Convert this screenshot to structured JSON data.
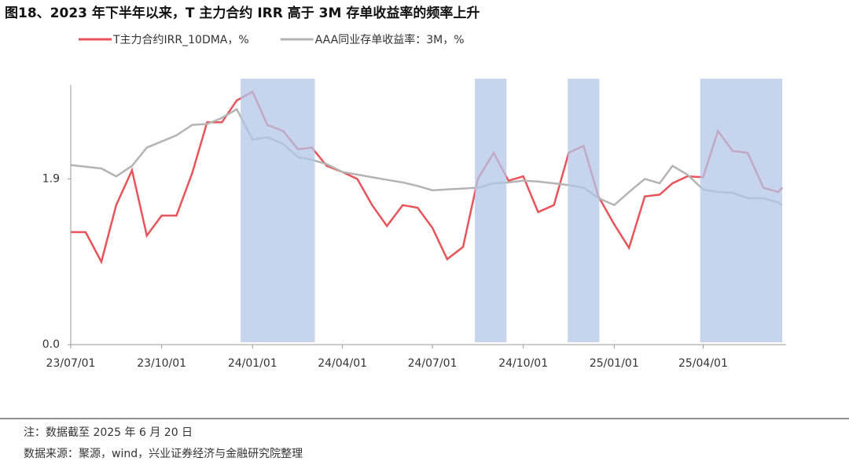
{
  "chart_data": {
    "type": "line",
    "title": "图18、2023 年下半年以来，T 主力合约 IRR 高于 3M 存单收益率的频率上升",
    "x": [
      "2023-07-01",
      "2023-07-16",
      "2023-08-01",
      "2023-08-16",
      "2023-09-01",
      "2023-09-16",
      "2023-10-01",
      "2023-10-16",
      "2023-11-01",
      "2023-11-16",
      "2023-12-01",
      "2023-12-16",
      "2024-01-01",
      "2024-01-16",
      "2024-02-01",
      "2024-02-16",
      "2024-03-01",
      "2024-03-16",
      "2024-04-01",
      "2024-04-16",
      "2024-05-01",
      "2024-05-16",
      "2024-06-01",
      "2024-06-16",
      "2024-07-01",
      "2024-07-16",
      "2024-08-01",
      "2024-08-16",
      "2024-09-01",
      "2024-09-16",
      "2024-10-01",
      "2024-10-16",
      "2024-11-01",
      "2024-11-16",
      "2024-12-01",
      "2024-12-16",
      "2025-01-01",
      "2025-01-16",
      "2025-02-01",
      "2025-02-16",
      "2025-03-01",
      "2025-03-16",
      "2025-04-01",
      "2025-04-16",
      "2025-05-01",
      "2025-05-16",
      "2025-06-01",
      "2025-06-16",
      "2025-06-20"
    ],
    "series": [
      {
        "name": "T主力合约IRR_10DMA，%",
        "color": "#e8545a",
        "values": [
          1.29,
          1.29,
          0.95,
          1.6,
          2.0,
          1.25,
          1.48,
          1.48,
          1.97,
          2.55,
          2.55,
          2.8,
          2.9,
          2.52,
          2.45,
          2.24,
          2.26,
          2.05,
          1.98,
          1.9,
          1.6,
          1.36,
          1.6,
          1.57,
          1.34,
          0.98,
          1.12,
          1.9,
          2.2,
          1.88,
          1.93,
          1.52,
          1.6,
          2.2,
          2.28,
          1.7,
          1.38,
          1.11,
          1.7,
          1.72,
          1.85,
          1.93,
          1.92,
          2.45,
          2.22,
          2.2,
          1.8,
          1.75,
          1.8
        ]
      },
      {
        "name": "AAA同业存单收益率：3M，%",
        "color": "#b4b4b4",
        "values": [
          2.06,
          2.04,
          2.02,
          1.93,
          2.05,
          2.26,
          2.33,
          2.4,
          2.52,
          2.53,
          2.6,
          2.7,
          2.35,
          2.38,
          2.3,
          2.15,
          2.12,
          2.07,
          1.98,
          1.95,
          1.92,
          1.89,
          1.86,
          1.82,
          1.77,
          1.78,
          1.79,
          1.8,
          1.85,
          1.86,
          1.88,
          1.87,
          1.85,
          1.83,
          1.8,
          1.68,
          1.6,
          1.75,
          1.9,
          1.85,
          2.05,
          1.95,
          1.78,
          1.75,
          1.74,
          1.68,
          1.68,
          1.63,
          1.6
        ]
      }
    ],
    "shaded_periods": [
      [
        "2023-12-20",
        "2024-03-04"
      ],
      [
        "2024-08-13",
        "2024-09-14"
      ],
      [
        "2024-11-15",
        "2024-12-17"
      ],
      [
        "2025-03-29",
        "2025-06-20"
      ]
    ],
    "shade_color": "#b4c6e7",
    "xlim": [
      "2023-07-01",
      "2025-06-20"
    ],
    "xticks": [
      {
        "value": "2023-07-01",
        "label": "23/07/01"
      },
      {
        "value": "2023-10-01",
        "label": "23/10/01"
      },
      {
        "value": "2024-01-01",
        "label": "24/01/01"
      },
      {
        "value": "2024-04-01",
        "label": "24/04/01"
      },
      {
        "value": "2024-07-01",
        "label": "24/07/01"
      },
      {
        "value": "2024-10-01",
        "label": "24/10/01"
      },
      {
        "value": "2025-01-01",
        "label": "25/01/01"
      },
      {
        "value": "2025-04-01",
        "label": "25/04/01"
      }
    ],
    "ylim": [
      0,
      3.05
    ],
    "yticks": [
      {
        "value": 0,
        "label": "0.0"
      },
      1.9
    ],
    "legend": "top",
    "note": "注：数据截至 2025 年 6 月 20 日",
    "source": "数据来源：聚源，wind，兴业证券经济与金融研究院整理"
  }
}
